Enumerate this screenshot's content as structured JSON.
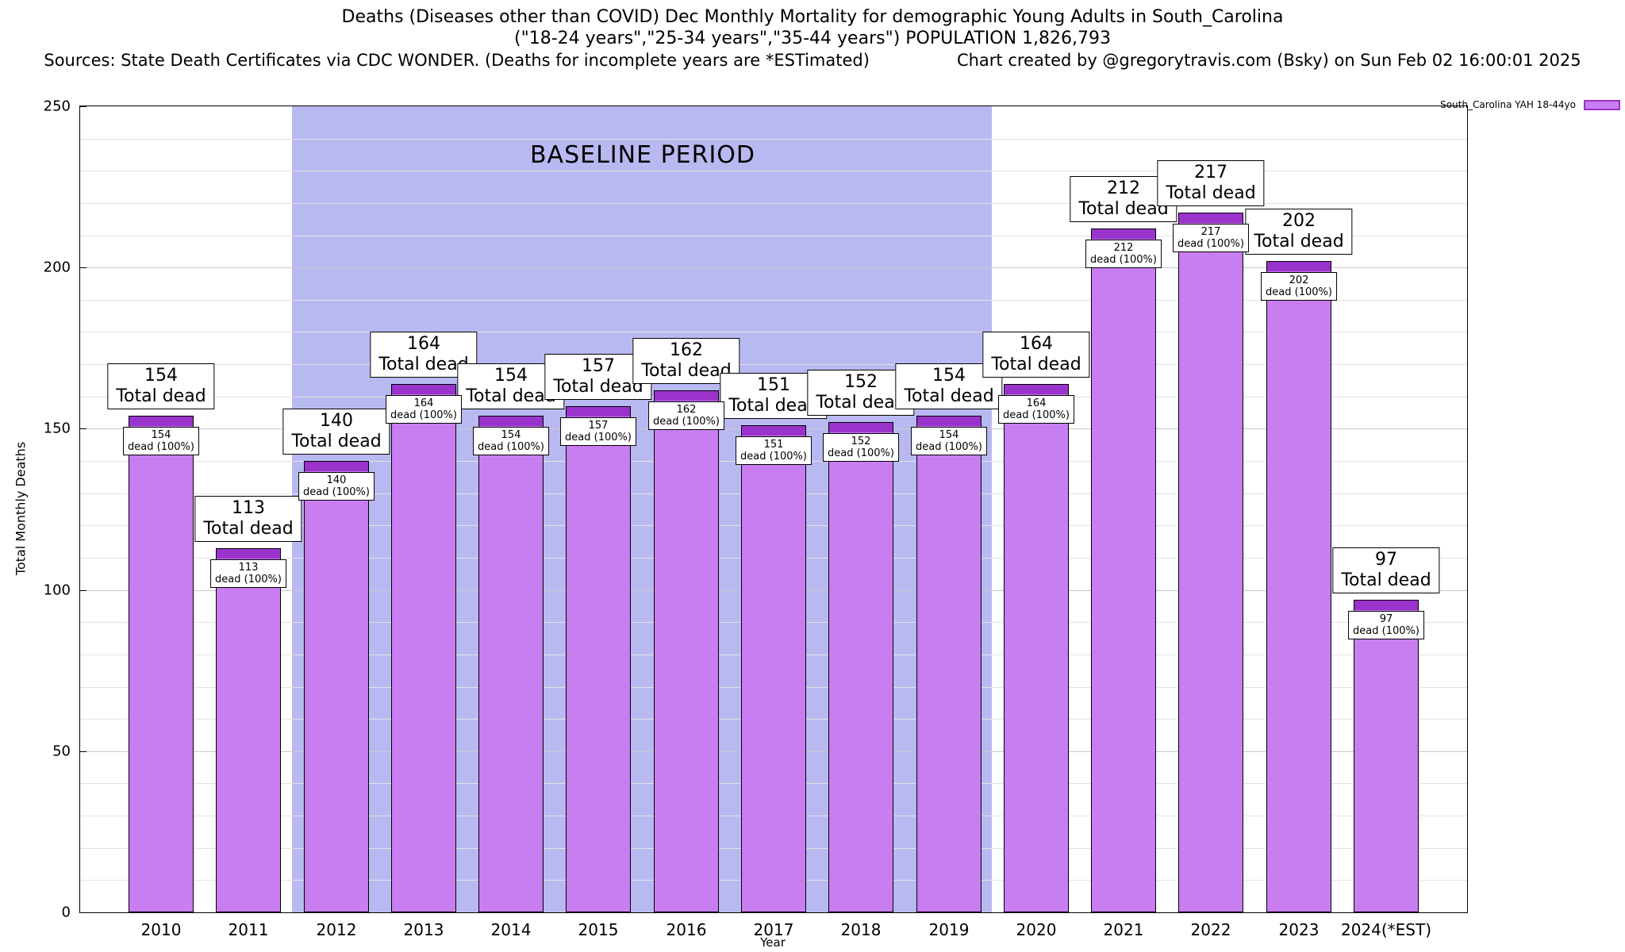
{
  "header": {
    "title_line1": "Deaths (Diseases other than COVID) Dec Monthly Mortality for demographic Young Adults in South_Carolina",
    "title_line2": "(\"18-24 years\",\"25-34 years\",\"35-44 years\") POPULATION 1,826,793",
    "sources_line": "Sources: State Death Certificates via CDC WONDER. (Deaths for incomplete years are *ESTimated)",
    "credit_line": "Chart created by @gregorytravis.com (Bsky) on Sun Feb 02 16:00:01 2025"
  },
  "colors": {
    "bar_fill": "#c87df0",
    "bar_cap": "#9933cc",
    "bar_border": "#000000",
    "baseline_region": "#b9b9f2",
    "grid_major": "#c9c9c9",
    "grid_minor": "#e3e3e3"
  },
  "chart_data": {
    "type": "bar",
    "title": "Deaths (Diseases other than COVID) Dec Monthly Mortality for demographic Young Adults in South_Carolina",
    "categories": [
      "2010",
      "2011",
      "2012",
      "2013",
      "2014",
      "2015",
      "2016",
      "2017",
      "2018",
      "2019",
      "2020",
      "2021",
      "2022",
      "2023",
      "2024(*EST)"
    ],
    "values": [
      154,
      113,
      140,
      164,
      154,
      157,
      162,
      151,
      152,
      154,
      164,
      212,
      217,
      202,
      97
    ],
    "bar_total_label": "Total dead",
    "bar_inner_label": "dead (100%)",
    "xlabel": "Year",
    "ylabel": "Total Monthly Deaths",
    "ylim": [
      0,
      250
    ],
    "ytick_step": 50,
    "yminor_step": 10,
    "grid": true,
    "legend_position": "top-right",
    "legend_label": "South_Carolina YAH 18-44yo",
    "baseline_period": {
      "label": "BASELINE PERIOD",
      "start_category": "2012",
      "end_category": "2019"
    }
  }
}
